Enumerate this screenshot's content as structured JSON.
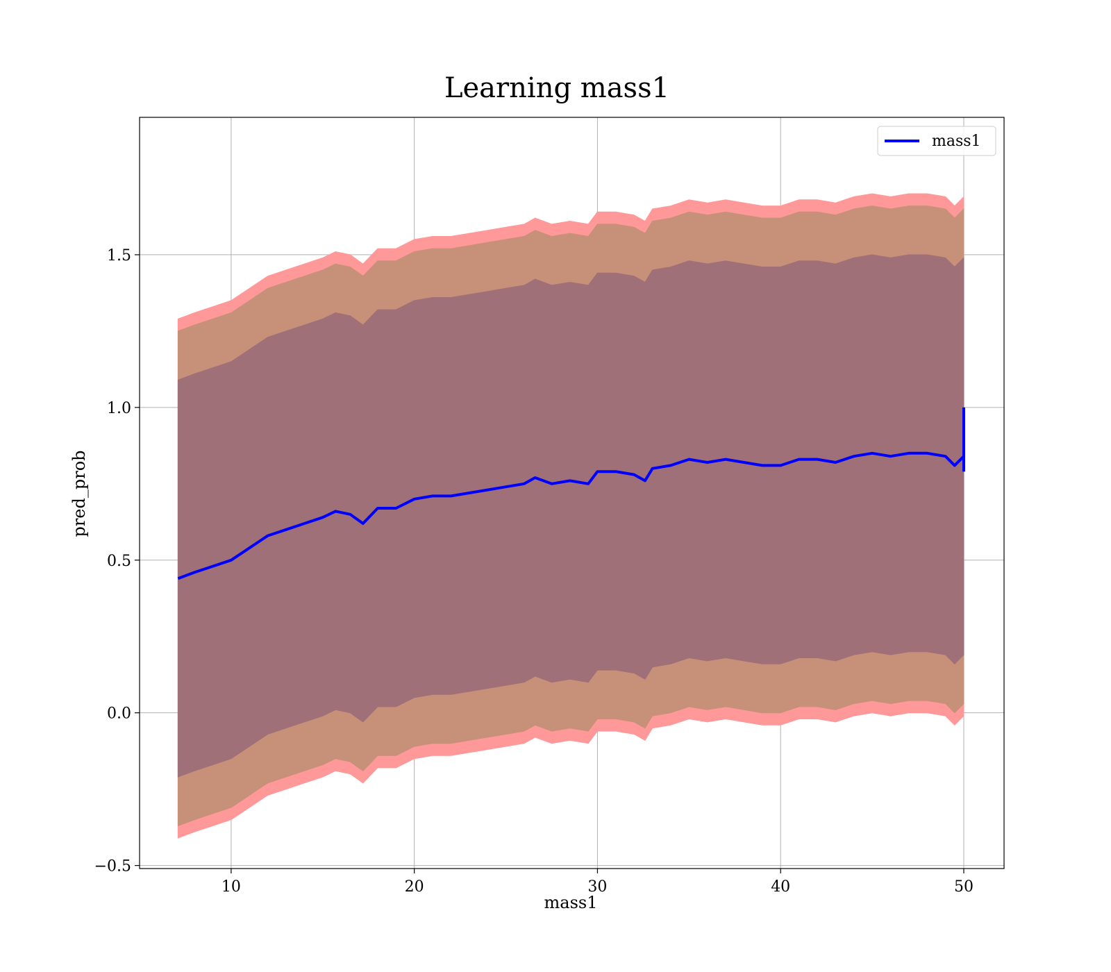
{
  "chart_data": {
    "type": "area",
    "title": "Learning mass1",
    "xlabel": "mass1",
    "ylabel": "pred_prob",
    "xlim": [
      5,
      52.2
    ],
    "ylim": [
      -0.51,
      1.95
    ],
    "xticks": [
      10,
      20,
      30,
      40,
      50
    ],
    "xtick_labels": [
      "10",
      "20",
      "30",
      "40",
      "50"
    ],
    "yticks": [
      -0.5,
      0.0,
      0.5,
      1.0,
      1.5
    ],
    "ytick_labels": [
      "−0.5",
      "0.0",
      "0.5",
      "1.0",
      "1.5"
    ],
    "grid": true,
    "legend": {
      "placement": "top-right",
      "entries": [
        "mass1"
      ]
    },
    "colors": {
      "line": "#0000ff",
      "band_outer": "#ff9999",
      "band_middle": "#c79078",
      "band_inner": "#a07078"
    },
    "x": [
      7.1,
      8,
      9,
      10,
      11,
      12,
      13,
      14,
      15,
      15.7,
      16.5,
      17.2,
      18,
      19,
      20,
      21,
      22,
      23,
      24,
      25,
      26,
      26.6,
      27.5,
      28.5,
      29.5,
      30,
      31,
      32,
      32.6,
      33,
      34,
      35,
      36,
      37,
      38,
      39,
      40,
      41,
      42,
      43,
      44,
      45,
      46,
      47,
      48,
      49,
      49.5,
      50
    ],
    "series": [
      {
        "name": "mass1",
        "values": [
          0.44,
          0.46,
          0.48,
          0.5,
          0.54,
          0.58,
          0.6,
          0.62,
          0.64,
          0.66,
          0.65,
          0.62,
          0.67,
          0.67,
          0.7,
          0.71,
          0.71,
          0.72,
          0.73,
          0.74,
          0.75,
          0.77,
          0.75,
          0.76,
          0.75,
          0.79,
          0.79,
          0.78,
          0.76,
          0.8,
          0.81,
          0.83,
          0.82,
          0.83,
          0.82,
          0.81,
          0.81,
          0.83,
          0.83,
          0.82,
          0.84,
          0.85,
          0.84,
          0.85,
          0.85,
          0.84,
          0.81,
          0.84
        ]
      }
    ],
    "band_offsets": {
      "inner": 0.65,
      "middle": 0.81,
      "outer": 0.85
    },
    "end_spike": {
      "x": 50,
      "values": [
        0.79,
        1.0
      ]
    }
  }
}
